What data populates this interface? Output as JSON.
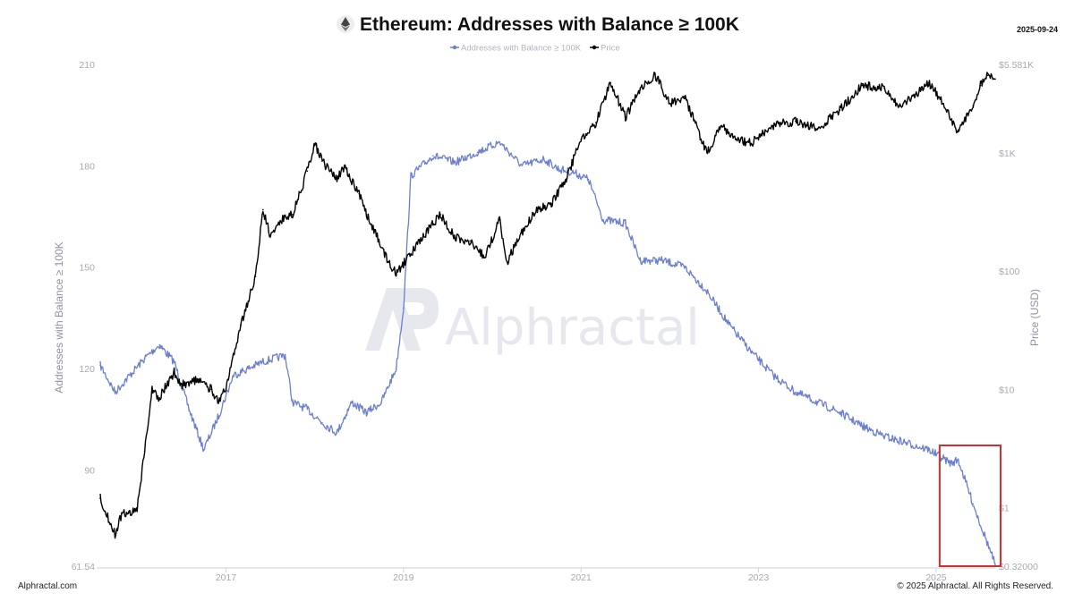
{
  "header": {
    "title": "Ethereum: Addresses with Balance ≥ 100K",
    "date": "2025-09-24"
  },
  "icons": {
    "title_icon": "ethereum-logo-icon",
    "watermark_icon": "alphractal-logo-icon"
  },
  "watermark": "Alphractal",
  "footer": {
    "left": "Alphractal.com",
    "right": "© 2025 Alphractal. All Rights Reserved."
  },
  "colors": {
    "addresses": "#6b7fcf",
    "price": "#000000",
    "highlight": "#d32f2f"
  },
  "chart_data": {
    "type": "line",
    "legend_position": "top-center",
    "grid": false,
    "x_axis": {
      "ticks": [
        "2017",
        "2019",
        "2021",
        "2023",
        "2025"
      ],
      "range": [
        "2015-08",
        "2025-09"
      ]
    },
    "y_left": {
      "label": "Addresses with Balance ≥ 100K",
      "ticks": [
        "210",
        "180",
        "150",
        "120",
        "90",
        "61.54"
      ],
      "range": [
        61.54,
        210
      ]
    },
    "y_right": {
      "label": "Price (USD)",
      "scale": "log",
      "ticks": [
        "$5.581K",
        "$1K",
        "$100",
        "$10",
        "$1",
        "$0.32000"
      ],
      "range": [
        0.32,
        5581
      ]
    },
    "series": [
      {
        "name": "Addresses with Balance ≥ 100K",
        "axis": "left",
        "points": [
          [
            "2015-08",
            121
          ],
          [
            "2015-10",
            113
          ],
          [
            "2015-12",
            118
          ],
          [
            "2016-02",
            123
          ],
          [
            "2016-04",
            127
          ],
          [
            "2016-06",
            122
          ],
          [
            "2016-08",
            108
          ],
          [
            "2016-10",
            96
          ],
          [
            "2016-12",
            106
          ],
          [
            "2017-02",
            118
          ],
          [
            "2017-04",
            120
          ],
          [
            "2017-06",
            122
          ],
          [
            "2017-09",
            124
          ],
          [
            "2017-10",
            110
          ],
          [
            "2017-12",
            108
          ],
          [
            "2018-02",
            104
          ],
          [
            "2018-04",
            101
          ],
          [
            "2018-06",
            110
          ],
          [
            "2018-08",
            107
          ],
          [
            "2018-10",
            110
          ],
          [
            "2018-12",
            120
          ],
          [
            "2019-01",
            138
          ],
          [
            "2019-02",
            177
          ],
          [
            "2019-05",
            183
          ],
          [
            "2019-08",
            181
          ],
          [
            "2019-11",
            184
          ],
          [
            "2020-02",
            187
          ],
          [
            "2020-05",
            180
          ],
          [
            "2020-08",
            182
          ],
          [
            "2020-10",
            179
          ],
          [
            "2020-12",
            178
          ],
          [
            "2021-02",
            176
          ],
          [
            "2021-04",
            164
          ],
          [
            "2021-07",
            163
          ],
          [
            "2021-09",
            152
          ],
          [
            "2021-12",
            152
          ],
          [
            "2022-03",
            150
          ],
          [
            "2022-06",
            143
          ],
          [
            "2022-09",
            133
          ],
          [
            "2022-12",
            125
          ],
          [
            "2023-03",
            118
          ],
          [
            "2023-06",
            113
          ],
          [
            "2023-09",
            110
          ],
          [
            "2023-12",
            107
          ],
          [
            "2024-03",
            103
          ],
          [
            "2024-06",
            100
          ],
          [
            "2024-09",
            98
          ],
          [
            "2024-12",
            96
          ],
          [
            "2025-03",
            92
          ],
          [
            "2025-04",
            93
          ],
          [
            "2025-06",
            80
          ],
          [
            "2025-09",
            62
          ]
        ]
      },
      {
        "name": "Price",
        "axis": "right",
        "points": [
          [
            "2015-08",
            1.2
          ],
          [
            "2015-10",
            0.6
          ],
          [
            "2015-11",
            0.9
          ],
          [
            "2015-12",
            0.9
          ],
          [
            "2016-01",
            1.0
          ],
          [
            "2016-02",
            3.0
          ],
          [
            "2016-03",
            10
          ],
          [
            "2016-04",
            8.5
          ],
          [
            "2016-06",
            14
          ],
          [
            "2016-07",
            11
          ],
          [
            "2016-09",
            12
          ],
          [
            "2016-11",
            10
          ],
          [
            "2016-12",
            8
          ],
          [
            "2017-01",
            10
          ],
          [
            "2017-03",
            35
          ],
          [
            "2017-05",
            90
          ],
          [
            "2017-06",
            330
          ],
          [
            "2017-07",
            200
          ],
          [
            "2017-09",
            290
          ],
          [
            "2017-10",
            300
          ],
          [
            "2017-12",
            700
          ],
          [
            "2018-01",
            1200
          ],
          [
            "2018-02",
            850
          ],
          [
            "2018-04",
            600
          ],
          [
            "2018-05",
            750
          ],
          [
            "2018-07",
            450
          ],
          [
            "2018-08",
            300
          ],
          [
            "2018-09",
            220
          ],
          [
            "2018-11",
            120
          ],
          [
            "2018-12",
            95
          ],
          [
            "2019-02",
            140
          ],
          [
            "2019-05",
            250
          ],
          [
            "2019-06",
            300
          ],
          [
            "2019-08",
            190
          ],
          [
            "2019-10",
            180
          ],
          [
            "2019-12",
            130
          ],
          [
            "2020-02",
            270
          ],
          [
            "2020-03",
            120
          ],
          [
            "2020-05",
            210
          ],
          [
            "2020-07",
            330
          ],
          [
            "2020-09",
            370
          ],
          [
            "2020-11",
            600
          ],
          [
            "2021-01",
            1300
          ],
          [
            "2021-03",
            1800
          ],
          [
            "2021-05",
            3900
          ],
          [
            "2021-07",
            2000
          ],
          [
            "2021-09",
            3400
          ],
          [
            "2021-11",
            4600
          ],
          [
            "2022-01",
            2600
          ],
          [
            "2022-03",
            3000
          ],
          [
            "2022-06",
            1000
          ],
          [
            "2022-08",
            1700
          ],
          [
            "2022-10",
            1300
          ],
          [
            "2022-12",
            1200
          ],
          [
            "2023-03",
            1700
          ],
          [
            "2023-06",
            1850
          ],
          [
            "2023-09",
            1600
          ],
          [
            "2023-12",
            2300
          ],
          [
            "2024-03",
            3700
          ],
          [
            "2024-06",
            3500
          ],
          [
            "2024-08",
            2500
          ],
          [
            "2024-11",
            3400
          ],
          [
            "2024-12",
            3900
          ],
          [
            "2025-02",
            2600
          ],
          [
            "2025-04",
            1500
          ],
          [
            "2025-06",
            2500
          ],
          [
            "2025-07",
            3700
          ],
          [
            "2025-08",
            4500
          ],
          [
            "2025-09",
            4200
          ]
        ]
      }
    ],
    "annotations": [
      {
        "type": "rectangle",
        "color": "#d32f2f",
        "x_range": [
          "2025-01",
          "2025-09"
        ]
      }
    ]
  }
}
